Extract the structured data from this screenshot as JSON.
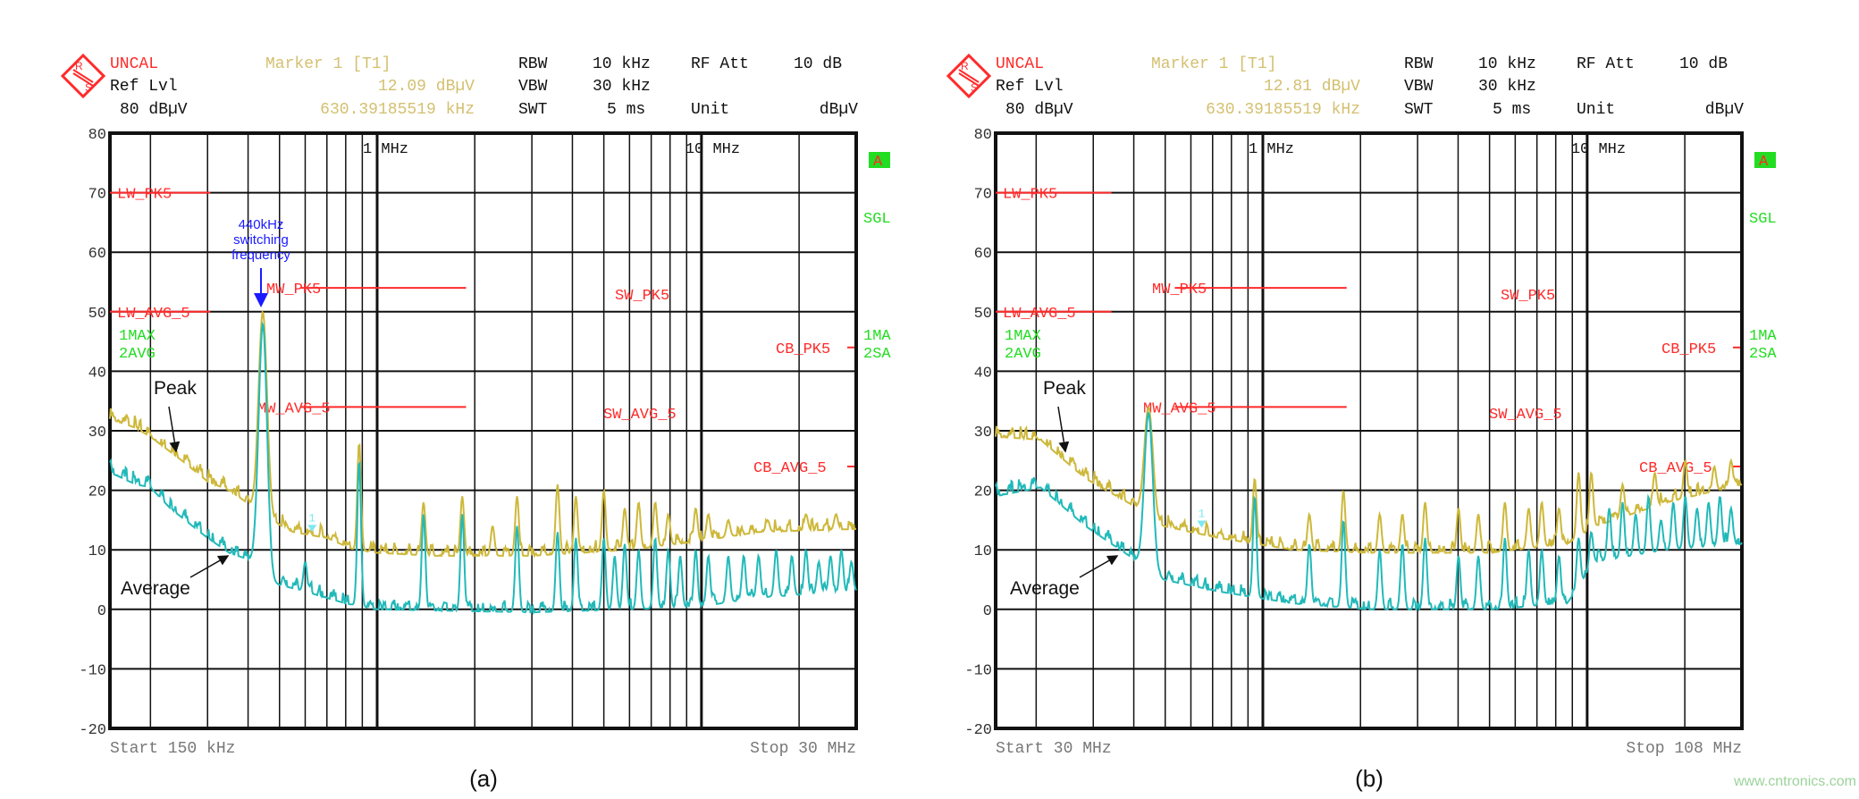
{
  "colors": {
    "peak_trace": "#cdb83a",
    "avg_trace": "#22b9b9",
    "limit": "#ff2a2a",
    "status": "#22dd22",
    "annotation": "#1a1aff",
    "marker_text": "#d4c070"
  },
  "watermark": "www.cntronics.com",
  "panels": [
    {
      "caption": "(a)",
      "header": {
        "status": "UNCAL",
        "ref_lvl_label": "Ref Lvl",
        "ref_lvl_value": "80 dBµV",
        "marker_label": "Marker 1 [T1]",
        "marker_level": "12.09 dBµV",
        "marker_freq": "630.39185519 kHz",
        "rbw_label": "RBW",
        "rbw_value": "10 kHz",
        "vbw_label": "VBW",
        "vbw_value": "30 kHz",
        "swt_label": "SWT",
        "swt_value": "5 ms",
        "rfatt_label": "RF Att",
        "rfatt_value": "10 dB",
        "unit_label": "Unit",
        "unit_value": "dBµV"
      },
      "side": {
        "a_badge": "A",
        "sgl": "SGL",
        "trace1": "1MA",
        "trace2": "2SA",
        "left1": "1MAX",
        "left2": "2AVG"
      },
      "grid_labels": {
        "one_mhz": "1 MHz",
        "ten_mhz": "10 MHz"
      },
      "start": "Start 150 kHz",
      "stop": "Stop 30 MHz",
      "annotations": {
        "switching": [
          "440kHz",
          "switching",
          "frequency"
        ],
        "peak": "Peak",
        "average": "Average"
      },
      "marker_num": "1"
    },
    {
      "caption": "(b)",
      "header": {
        "status": "UNCAL",
        "ref_lvl_label": "Ref Lvl",
        "ref_lvl_value": "80 dBµV",
        "marker_label": "Marker 1 [T1]",
        "marker_level": "12.81 dBµV",
        "marker_freq": "630.39185519 kHz",
        "rbw_label": "RBW",
        "rbw_value": "10 kHz",
        "vbw_label": "VBW",
        "vbw_value": "30 kHz",
        "swt_label": "SWT",
        "swt_value": "5 ms",
        "rfatt_label": "RF Att",
        "rfatt_value": "10 dB",
        "unit_label": "Unit",
        "unit_value": "dBµV"
      },
      "side": {
        "a_badge": "A",
        "sgl": "SGL",
        "trace1": "1MA",
        "trace2": "2SA",
        "left1": "1MAX",
        "left2": "2AVG"
      },
      "grid_labels": {
        "one_mhz": "1 MHz",
        "ten_mhz": "10 MHz"
      },
      "start": "Start 30 MHz",
      "stop": "Stop 108 MHz",
      "annotations": {
        "peak": "Peak",
        "average": "Average"
      },
      "marker_num": "1"
    }
  ],
  "chart_data": [
    {
      "type": "line",
      "x_scale": "log",
      "x_unit": "MHz",
      "y_unit": "dBµV",
      "xlim": [
        0.15,
        30
      ],
      "ylim": [
        -20,
        80
      ],
      "yticks": [
        "80",
        "70",
        "60",
        "50",
        "40",
        "30",
        "20",
        "10",
        "0",
        "-10",
        "-20"
      ],
      "grid": true,
      "marker": {
        "freq": 0.63,
        "value": 12.09
      },
      "limits": [
        {
          "label": "LW_PK5",
          "value": 70,
          "from": 0.15,
          "to": 0.306
        },
        {
          "label": "LW_AVG_5",
          "value": 50,
          "from": 0.15,
          "to": 0.306
        },
        {
          "label": "MW_PK5",
          "value": 54,
          "from": 0.58,
          "to": 1.88
        },
        {
          "label": "MW_AVG_5",
          "value": 34,
          "from": 0.58,
          "to": 1.88
        },
        {
          "label": "SW_PK5",
          "value": 53
        },
        {
          "label": "SW_AVG_5",
          "value": 33
        },
        {
          "label": "CB_PK5",
          "value": 44
        },
        {
          "label": "CB_AVG_5",
          "value": 24
        }
      ],
      "series": [
        {
          "name": "Peak",
          "base": [
            [
              0.15,
              32
            ],
            [
              0.18,
              30.5
            ],
            [
              0.2,
              29
            ],
            [
              0.25,
              25
            ],
            [
              0.3,
              21.5
            ],
            [
              0.35,
              20
            ],
            [
              0.42,
              17
            ],
            [
              0.47,
              15
            ],
            [
              0.55,
              13
            ],
            [
              0.7,
              12
            ],
            [
              0.85,
              10
            ],
            [
              1.0,
              9.5
            ],
            [
              1.5,
              9
            ],
            [
              3,
              9
            ],
            [
              6,
              10
            ],
            [
              10,
              11.5
            ],
            [
              15,
              13
            ],
            [
              30,
              13.5
            ]
          ],
          "spikes": [
            [
              0.444,
              50
            ],
            [
              0.88,
              28
            ],
            [
              1.39,
              18
            ],
            [
              1.83,
              19
            ],
            [
              2.27,
              14
            ],
            [
              2.7,
              19
            ],
            [
              3.6,
              21
            ],
            [
              4.1,
              19
            ],
            [
              5.0,
              20
            ],
            [
              5.8,
              17
            ],
            [
              6.4,
              18
            ],
            [
              7.2,
              18
            ],
            [
              7.9,
              16
            ],
            [
              9.6,
              17
            ],
            [
              10.5,
              16
            ],
            [
              12.1,
              15
            ],
            [
              16,
              15
            ],
            [
              21,
              16
            ],
            [
              26,
              16
            ]
          ]
        },
        {
          "name": "Average",
          "base": [
            [
              0.15,
              23
            ],
            [
              0.18,
              21
            ],
            [
              0.2,
              20.5
            ],
            [
              0.23,
              17
            ],
            [
              0.3,
              12
            ],
            [
              0.35,
              9.5
            ],
            [
              0.42,
              8
            ],
            [
              0.47,
              4.5
            ],
            [
              0.6,
              3
            ],
            [
              0.8,
              1
            ],
            [
              1.0,
              0
            ],
            [
              3,
              -0.5
            ],
            [
              6,
              0
            ],
            [
              10,
              0.5
            ],
            [
              15,
              2
            ],
            [
              30,
              3
            ]
          ],
          "spikes": [
            [
              0.444,
              48
            ],
            [
              0.6,
              8
            ],
            [
              0.88,
              25
            ],
            [
              1.39,
              16
            ],
            [
              1.83,
              16
            ],
            [
              2.7,
              14
            ],
            [
              3.6,
              13
            ],
            [
              4.1,
              12
            ],
            [
              5.0,
              12
            ],
            [
              5.4,
              9
            ],
            [
              5.8,
              11
            ],
            [
              6.4,
              10
            ],
            [
              7.2,
              12
            ],
            [
              7.9,
              10
            ],
            [
              8.6,
              9
            ],
            [
              9.6,
              10
            ],
            [
              10.5,
              9
            ],
            [
              12.1,
              9
            ],
            [
              13.5,
              9
            ],
            [
              15,
              9
            ],
            [
              17,
              10
            ],
            [
              19,
              9
            ],
            [
              21,
              10
            ],
            [
              23,
              8
            ],
            [
              25,
              9
            ],
            [
              27,
              10
            ],
            [
              29,
              8
            ]
          ]
        }
      ]
    },
    {
      "type": "line",
      "x_scale": "log",
      "x_unit": "MHz",
      "y_unit": "dBµV",
      "xlim": [
        30,
        108
      ],
      "ylim": [
        -20,
        80
      ],
      "yticks": [
        "80",
        "70",
        "60",
        "50",
        "40",
        "30",
        "20",
        "10",
        "0",
        "-10",
        "-20"
      ],
      "grid": true,
      "limits": [
        {
          "label": "LW_PK5",
          "value": 70,
          "from": 30,
          "to": 36.6
        },
        {
          "label": "LW_AVG_5",
          "value": 50,
          "from": 30,
          "to": 36.6
        },
        {
          "label": "MW_PK5",
          "value": 54,
          "from": 40.8,
          "to": 54.8
        },
        {
          "label": "MW_AVG_5",
          "value": 34,
          "from": 40.8,
          "to": 54.8
        },
        {
          "label": "SW_PK5",
          "value": 53
        },
        {
          "label": "SW_AVG_5",
          "value": 33
        },
        {
          "label": "CB_PK5",
          "value": 44
        },
        {
          "label": "CB_AVG_5",
          "value": 24
        }
      ],
      "series": [
        {
          "name": "Peak",
          "base": [
            [
              30,
              29
            ],
            [
              32.4,
              28.5
            ],
            [
              35,
              22
            ],
            [
              38.3,
              17
            ],
            [
              40,
              14
            ],
            [
              44,
              12
            ],
            [
              50,
              10
            ],
            [
              57,
              9.5
            ],
            [
              70,
              9.5
            ],
            [
              80,
              11
            ],
            [
              84,
              14
            ],
            [
              95,
              18
            ],
            [
              108,
              21
            ]
          ],
          "spikes": [
            [
              39.0,
              34
            ],
            [
              46.8,
              22
            ],
            [
              51.4,
              16
            ],
            [
              54.5,
              20
            ],
            [
              58.0,
              16
            ],
            [
              60.3,
              16
            ],
            [
              62.7,
              18
            ],
            [
              66.4,
              17
            ],
            [
              68.7,
              16
            ],
            [
              71.9,
              18
            ],
            [
              74.9,
              17
            ],
            [
              76.6,
              18
            ],
            [
              78.9,
              17
            ],
            [
              81.6,
              23
            ],
            [
              83.4,
              23
            ],
            [
              88,
              21
            ],
            [
              93,
              23
            ],
            [
              98,
              25
            ],
            [
              103,
              24
            ],
            [
              106,
              25
            ]
          ]
        },
        {
          "name": "Average",
          "base": [
            [
              30,
              19
            ],
            [
              32.4,
              20.5
            ],
            [
              35,
              14
            ],
            [
              38.3,
              8
            ],
            [
              40,
              5
            ],
            [
              44,
              3
            ],
            [
              50,
              1
            ],
            [
              57,
              0
            ],
            [
              70,
              0
            ],
            [
              80,
              1
            ],
            [
              84,
              8
            ],
            [
              95,
              10
            ],
            [
              108,
              11
            ]
          ],
          "spikes": [
            [
              39.0,
              33
            ],
            [
              46.8,
              19
            ],
            [
              51.4,
              11
            ],
            [
              54.5,
              15
            ],
            [
              58.0,
              10
            ],
            [
              60.3,
              11
            ],
            [
              62.7,
              12
            ],
            [
              66.4,
              9
            ],
            [
              68.7,
              9
            ],
            [
              71.9,
              12
            ],
            [
              74.9,
              10
            ],
            [
              76.6,
              10
            ],
            [
              78.9,
              9
            ],
            [
              81.6,
              12
            ],
            [
              83.4,
              13
            ],
            [
              86,
              17
            ],
            [
              88,
              18
            ],
            [
              90,
              16
            ],
            [
              92,
              19
            ],
            [
              94,
              15
            ],
            [
              96,
              18
            ],
            [
              98,
              19
            ],
            [
              100,
              17
            ],
            [
              102,
              18
            ],
            [
              104,
              19
            ],
            [
              106,
              17
            ]
          ]
        }
      ]
    }
  ]
}
